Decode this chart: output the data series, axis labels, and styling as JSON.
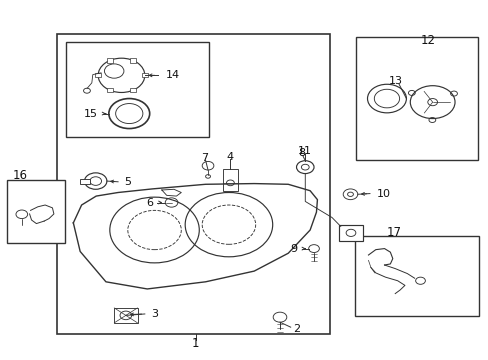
{
  "bg_color": "#ffffff",
  "line_color": "#333333",
  "text_color": "#111111",
  "fig_width": 4.89,
  "fig_height": 3.6,
  "dpi": 100
}
